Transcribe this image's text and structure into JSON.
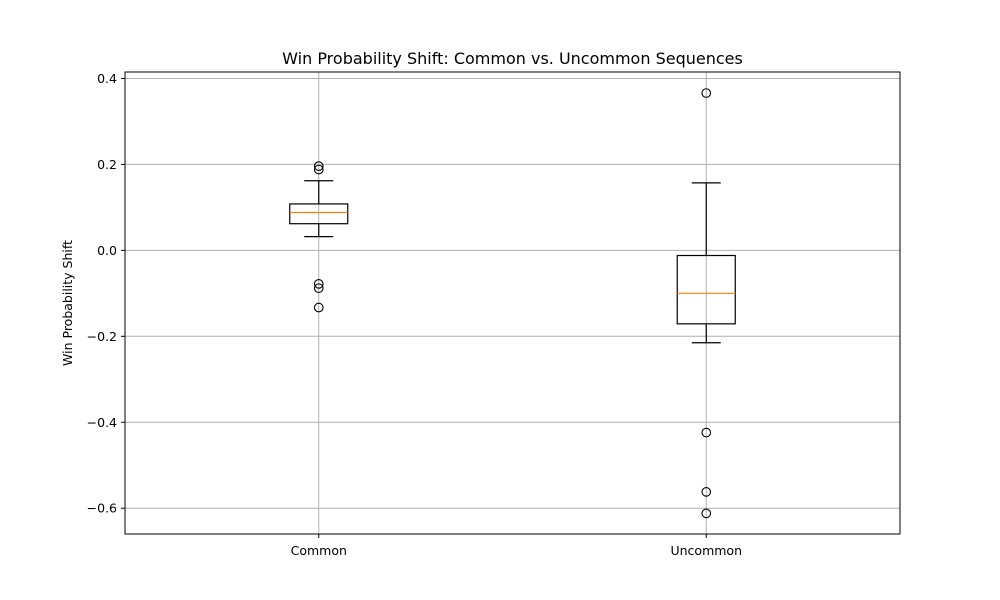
{
  "chart_data": {
    "type": "box",
    "title": "Win Probability Shift: Common vs. Uncommon Sequences",
    "xlabel": "",
    "ylabel": "Win Probability Shift",
    "ylim": [
      -0.66,
      0.415
    ],
    "yticks": [
      {
        "value": 0.4,
        "label": "0.4"
      },
      {
        "value": 0.2,
        "label": "0.2"
      },
      {
        "value": 0.0,
        "label": "0.0"
      },
      {
        "value": -0.2,
        "label": "−0.2"
      },
      {
        "value": -0.4,
        "label": "−0.4"
      },
      {
        "value": -0.6,
        "label": "−0.6"
      }
    ],
    "grid": true,
    "categories": [
      "Common",
      "Uncommon"
    ],
    "boxes": [
      {
        "category": "Common",
        "whisker_low": 0.032,
        "q1": 0.062,
        "median": 0.088,
        "q3": 0.108,
        "whisker_high": 0.162,
        "outliers": [
          0.196,
          0.188,
          -0.078,
          -0.088,
          -0.133
        ]
      },
      {
        "category": "Uncommon",
        "whisker_low": -0.215,
        "q1": -0.171,
        "median": -0.1,
        "q3": -0.012,
        "whisker_high": 0.157,
        "outliers": [
          0.366,
          -0.424,
          -0.562,
          -0.612
        ]
      }
    ],
    "colors": {
      "box": "#000000",
      "median": "#ff7f0e",
      "grid": "#b0b0b0"
    }
  }
}
